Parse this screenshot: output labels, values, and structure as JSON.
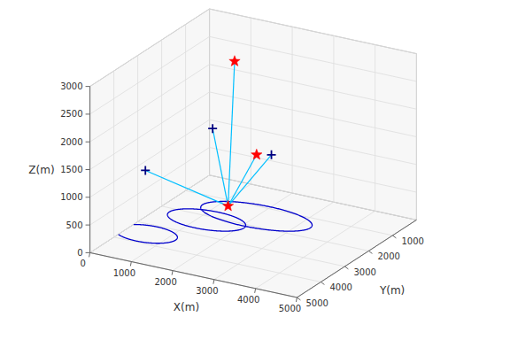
{
  "chart_data": {
    "type": "scatter3d",
    "xlabel": "X(m)",
    "ylabel": "Y(m)",
    "zlabel": "Z(m)",
    "xlim": [
      0,
      5000
    ],
    "ylim": [
      5000,
      0
    ],
    "zlim": [
      0,
      3000
    ],
    "xticks": [
      0,
      1000,
      2000,
      3000,
      4000,
      5000
    ],
    "yticks": [
      1000,
      2000,
      3000,
      4000,
      5000
    ],
    "zticks": [
      0,
      500,
      1000,
      1500,
      2000,
      2500,
      3000
    ],
    "grid": true,
    "ellipses": {
      "color": "#0000cc",
      "cx": [
        500,
        1200,
        2000
      ],
      "cy": [
        3500,
        2200,
        1500
      ],
      "rx": [
        700,
        900,
        1300
      ],
      "ry": [
        450,
        500,
        600
      ],
      "z": [
        0,
        0,
        0
      ]
    },
    "series": [
      {
        "type": "line",
        "color": "#00bfff",
        "x": [
          1200,
          300
        ],
        "y": [
          1300,
          3200
        ],
        "z": [
          0,
          1030
        ]
      },
      {
        "type": "line",
        "color": "#00bfff",
        "x": [
          1200,
          1000
        ],
        "y": [
          1300,
          1600
        ],
        "z": [
          0,
          1450
        ]
      },
      {
        "type": "line",
        "color": "#00bfff",
        "x": [
          1200,
          1900
        ],
        "y": [
          1300,
          700
        ],
        "z": [
          0,
          870
        ]
      },
      {
        "type": "line",
        "color": "#00bfff",
        "x": [
          1200,
          1300
        ],
        "y": [
          1300,
          1200
        ],
        "z": [
          0,
          2600
        ]
      },
      {
        "type": "line",
        "color": "#00bfff",
        "x": [
          1200,
          1600
        ],
        "y": [
          1300,
          800
        ],
        "z": [
          0,
          850
        ]
      },
      {
        "type": "scatter",
        "color": "red",
        "marker": "star",
        "x": [
          1200,
          1600,
          1300
        ],
        "y": [
          1300,
          800,
          1200
        ],
        "z": [
          0,
          850,
          2600
        ]
      },
      {
        "type": "scatter",
        "color": "#000080",
        "marker": "plus",
        "x": [
          300,
          1000,
          1900
        ],
        "y": [
          3200,
          1600,
          700
        ],
        "z": [
          1030,
          1450,
          870
        ]
      }
    ]
  }
}
